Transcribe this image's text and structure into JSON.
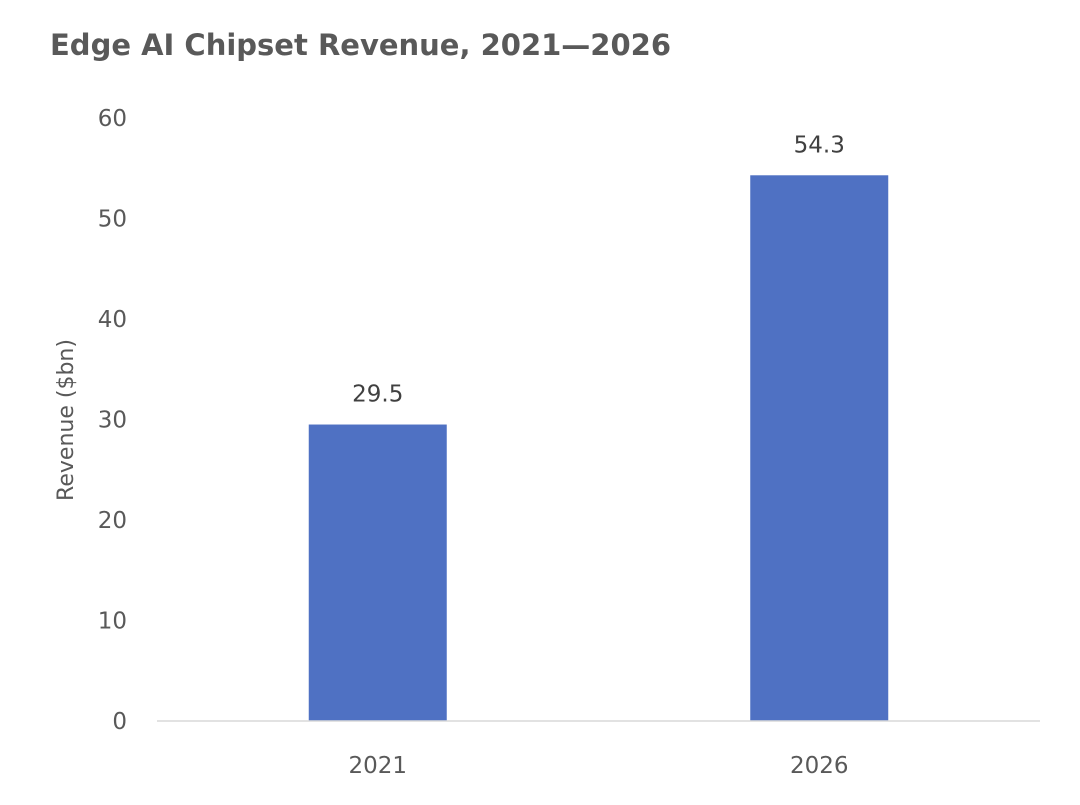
{
  "chart_data": {
    "type": "bar",
    "title": "Edge AI Chipset Revenue, 2021—2026",
    "categories": [
      "2021",
      "2026"
    ],
    "values": [
      29.5,
      54.3
    ],
    "data_labels": [
      "29.5",
      "54.3"
    ],
    "xlabel": "",
    "ylabel": "Revenue ($bn)",
    "ylim": [
      0,
      60
    ],
    "yticks": [
      0,
      10,
      20,
      30,
      40,
      50,
      60
    ],
    "ytick_labels": [
      "0",
      "10",
      "20",
      "30",
      "40",
      "50",
      "60"
    ],
    "grid": false,
    "legend": "none",
    "bar_color": "#4F71C3",
    "text_color": "#595959",
    "axis_color": "#D9D9D9"
  }
}
